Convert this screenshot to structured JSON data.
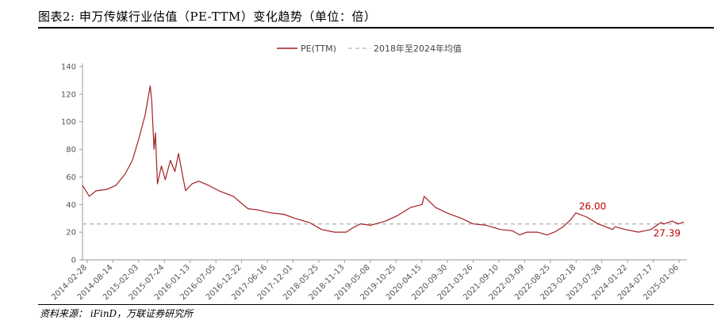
{
  "title": "图表2:    申万传媒行业估值（PE-TTM）变化趋势（单位：倍）",
  "source": "资料来源： iFinD，万联证券研究所",
  "chart_data": {
    "type": "line",
    "title": "",
    "xlabel": "",
    "ylabel": "",
    "ylim": [
      0,
      140
    ],
    "y_ticks": [
      0,
      20,
      40,
      60,
      80,
      100,
      120,
      140
    ],
    "x_ticks": [
      "2014-02-28",
      "2014-08-14",
      "2015-02-03",
      "2015-07-24",
      "2016-01-13",
      "2016-07-05",
      "2016-12-22",
      "2017-06-16",
      "2017-12-01",
      "2018-05-25",
      "2018-11-13",
      "2019-05-08",
      "2019-10-25",
      "2020-04-15",
      "2020-09-30",
      "2021-03-26",
      "2021-09-10",
      "2022-03-09",
      "2022-08-25",
      "2023-02-18",
      "2023-07-28",
      "2024-01-22",
      "2024-07-17",
      "2025-01-06"
    ],
    "legend_position": "top-center",
    "grid": false,
    "series": [
      {
        "name": "PE(TTM)",
        "color": "#a31e22",
        "style": "solid",
        "x": [
          "2014-02-28",
          "2014-04-15",
          "2014-06-01",
          "2014-08-14",
          "2014-10-15",
          "2014-12-15",
          "2015-02-03",
          "2015-03-20",
          "2015-05-01",
          "2015-06-05",
          "2015-06-15",
          "2015-07-01",
          "2015-07-10",
          "2015-07-24",
          "2015-08-20",
          "2015-09-15",
          "2015-10-20",
          "2015-11-20",
          "2015-12-15",
          "2016-01-13",
          "2016-02-01",
          "2016-03-15",
          "2016-05-01",
          "2016-07-05",
          "2016-09-15",
          "2016-12-22",
          "2017-02-15",
          "2017-04-01",
          "2017-06-16",
          "2017-09-01",
          "2017-12-01",
          "2018-02-15",
          "2018-05-25",
          "2018-08-15",
          "2018-11-13",
          "2019-01-31",
          "2019-03-15",
          "2019-05-08",
          "2019-07-15",
          "2019-10-25",
          "2020-01-15",
          "2020-04-15",
          "2020-07-01",
          "2020-07-15",
          "2020-09-30",
          "2020-12-15",
          "2021-03-26",
          "2021-06-15",
          "2021-09-10",
          "2021-12-15",
          "2022-03-09",
          "2022-04-27",
          "2022-06-15",
          "2022-08-25",
          "2022-10-31",
          "2022-12-20",
          "2023-02-18",
          "2023-04-10",
          "2023-05-15",
          "2023-07-28",
          "2023-10-15",
          "2024-01-22",
          "2024-02-05",
          "2024-04-15",
          "2024-07-17",
          "2024-10-08",
          "2024-12-15",
          "2025-01-06",
          "2025-03-01",
          "2025-04-15",
          "2025-05-20"
        ],
        "values": [
          54,
          46,
          50,
          51,
          54,
          62,
          72,
          88,
          105,
          126,
          115,
          80,
          92,
          55,
          68,
          58,
          72,
          64,
          77,
          60,
          50,
          55,
          57,
          54,
          50,
          46,
          41,
          37,
          36,
          34,
          33,
          30,
          27,
          22,
          20,
          20,
          23,
          26,
          25,
          28,
          32,
          38,
          40,
          46,
          38,
          34,
          30,
          26,
          25,
          22,
          21,
          18,
          20,
          20,
          18,
          20,
          24,
          29,
          34,
          31,
          26,
          22,
          24,
          22,
          20,
          22,
          27,
          26,
          28,
          26,
          27.39
        ]
      },
      {
        "name": "2018年至2024年均值",
        "color": "#bfbfbf",
        "style": "dashed",
        "constant": 26.0
      }
    ],
    "annotations": [
      {
        "text": "26.00",
        "x": "2023-05-15",
        "y": 34
      },
      {
        "text": "27.39",
        "x": "2025-05-20",
        "y": 27.39
      }
    ]
  }
}
